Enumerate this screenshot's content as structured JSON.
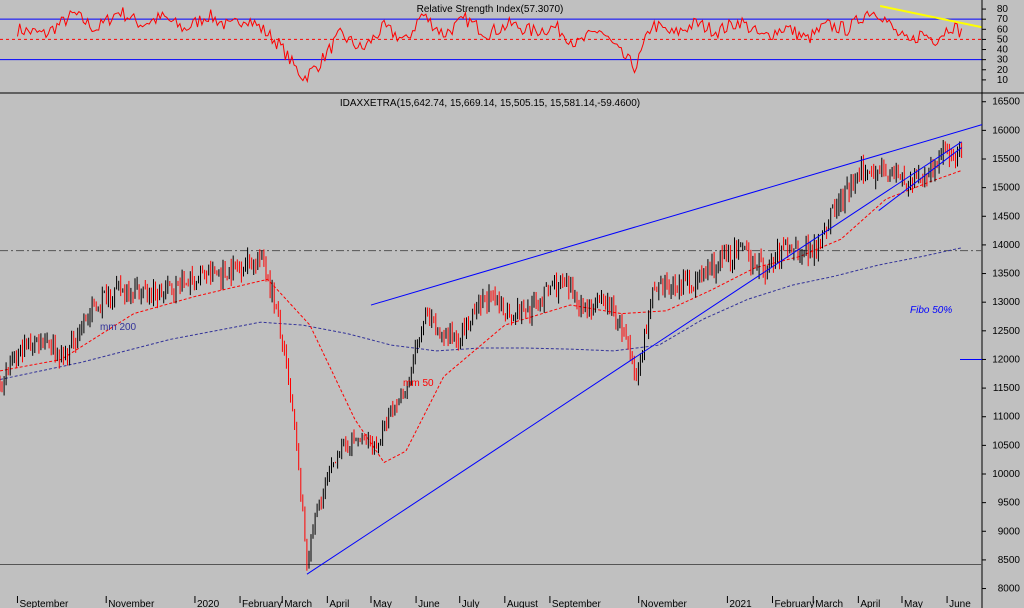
{
  "colors": {
    "background": "#c0c0c0",
    "price_up": "#000000",
    "price_down": "#ff0000",
    "trendline": "#0000ff",
    "ma50": "#ff0000",
    "ma200": "#333399",
    "rsi_line": "#ff0000",
    "rsi_band": "#0000ff",
    "rsi_trend": "#ffff00",
    "fibo_label": "#0000ff"
  },
  "chart_data": [
    {
      "type": "line",
      "title": "Relative Strength Index(57.3070)",
      "ylim": [
        0,
        85
      ],
      "y_ticks": [
        10,
        20,
        30,
        40,
        50,
        60,
        70,
        80
      ],
      "overbought": 70,
      "oversold": 30,
      "midline": 50,
      "series": [
        {
          "x": [
            "2019-09-01",
            "2019-09-20",
            "2019-10-10",
            "2019-10-25",
            "2019-11-10",
            "2019-11-25",
            "2019-12-10",
            "2019-12-25",
            "2020-01-10",
            "2020-01-25",
            "2020-02-05",
            "2020-02-18",
            "2020-02-28",
            "2020-03-10",
            "2020-03-16",
            "2020-03-26",
            "2020-04-10",
            "2020-04-25",
            "2020-05-10",
            "2020-05-25",
            "2020-06-05",
            "2020-06-20",
            "2020-07-05",
            "2020-07-20",
            "2020-08-05",
            "2020-08-20",
            "2020-09-05",
            "2020-09-20",
            "2020-10-05",
            "2020-10-20",
            "2020-10-30",
            "2020-11-10",
            "2020-11-25",
            "2020-12-10",
            "2020-12-25",
            "2021-01-10",
            "2021-01-25",
            "2021-02-10",
            "2021-02-25",
            "2021-03-10",
            "2021-03-25",
            "2021-04-08",
            "2021-04-16",
            "2021-04-26",
            "2021-05-06",
            "2021-05-14",
            "2021-05-24",
            "2021-06-04",
            "2021-06-11"
          ],
          "values": [
            60,
            55,
            75,
            60,
            78,
            65,
            72,
            60,
            74,
            62,
            72,
            58,
            45,
            22,
            12,
            25,
            55,
            40,
            62,
            48,
            75,
            55,
            70,
            56,
            65,
            58,
            62,
            45,
            60,
            35,
            22,
            65,
            55,
            66,
            58,
            68,
            52,
            62,
            50,
            64,
            60,
            78,
            76,
            58,
            46,
            56,
            50,
            64,
            57
          ]
        }
      ],
      "annotations": [
        {
          "type": "trendline",
          "color": "yellow",
          "from": [
            "2021-04-16",
            83
          ],
          "to": [
            "2021-06-25",
            62
          ]
        }
      ]
    },
    {
      "type": "candlestick",
      "title": "IDAXXETRA(15,642.74, 15,669.14, 15,505.15, 15,581.14,-59.4600)",
      "ylim": [
        7800,
        16600
      ],
      "y_ticks": [
        8000,
        8500,
        9000,
        9500,
        10000,
        10500,
        11000,
        11500,
        12000,
        12500,
        13000,
        13500,
        14000,
        14500,
        15000,
        15500,
        16000,
        16500
      ],
      "x_range": [
        "2019-08-20",
        "2021-06-25"
      ],
      "x_tick_labels": [
        {
          "date": "2019-09-01",
          "label": "September"
        },
        {
          "date": "2019-11-01",
          "label": "November"
        },
        {
          "date": "2020-01-01",
          "label": "2020"
        },
        {
          "date": "2020-02-01",
          "label": "February"
        },
        {
          "date": "2020-03-01",
          "label": "March"
        },
        {
          "date": "2020-04-01",
          "label": "April"
        },
        {
          "date": "2020-05-01",
          "label": "May"
        },
        {
          "date": "2020-06-01",
          "label": "June"
        },
        {
          "date": "2020-07-01",
          "label": "July"
        },
        {
          "date": "2020-08-01",
          "label": "August"
        },
        {
          "date": "2020-09-01",
          "label": "September"
        },
        {
          "date": "2020-11-01",
          "label": "November"
        },
        {
          "date": "2021-01-01",
          "label": "2021"
        },
        {
          "date": "2021-02-01",
          "label": "February"
        },
        {
          "date": "2021-03-01",
          "label": "March"
        },
        {
          "date": "2021-04-01",
          "label": "April"
        },
        {
          "date": "2021-05-01",
          "label": "May"
        },
        {
          "date": "2021-06-01",
          "label": "June"
        }
      ],
      "price_path": {
        "x": [
          "2019-08-20",
          "2019-09-05",
          "2019-09-20",
          "2019-10-03",
          "2019-10-15",
          "2019-11-01",
          "2019-11-20",
          "2019-12-05",
          "2019-12-20",
          "2020-01-05",
          "2020-01-20",
          "2020-02-05",
          "2020-02-17",
          "2020-02-24",
          "2020-03-03",
          "2020-03-10",
          "2020-03-16",
          "2020-03-18",
          "2020-03-24",
          "2020-04-08",
          "2020-04-20",
          "2020-05-05",
          "2020-05-15",
          "2020-05-25",
          "2020-06-08",
          "2020-06-15",
          "2020-07-01",
          "2020-07-20",
          "2020-08-05",
          "2020-08-20",
          "2020-09-03",
          "2020-09-15",
          "2020-09-25",
          "2020-10-10",
          "2020-10-23",
          "2020-10-30",
          "2020-11-10",
          "2020-11-25",
          "2020-12-10",
          "2020-12-28",
          "2021-01-10",
          "2021-01-28",
          "2021-02-10",
          "2021-02-28",
          "2021-03-15",
          "2021-03-31",
          "2021-04-16",
          "2021-04-26",
          "2021-05-07",
          "2021-05-13",
          "2021-05-25",
          "2021-06-04",
          "2021-06-11"
        ],
        "close": [
          11600,
          12200,
          12400,
          12000,
          12600,
          13150,
          13250,
          13100,
          13300,
          13450,
          13500,
          13700,
          13750,
          13100,
          12000,
          10700,
          9000,
          8450,
          9300,
          10400,
          10600,
          10500,
          11050,
          11500,
          12800,
          12450,
          12400,
          13100,
          12800,
          12900,
          13300,
          13200,
          12900,
          13000,
          12400,
          11600,
          13100,
          13300,
          13350,
          13750,
          13900,
          13550,
          14000,
          13900,
          14600,
          15150,
          15400,
          15200,
          15050,
          15150,
          15450,
          15650,
          15581
        ]
      },
      "series": [
        {
          "name": "mm 50",
          "x": [
            "2019-08-20",
            "2019-10-01",
            "2019-11-20",
            "2020-01-01",
            "2020-02-20",
            "2020-03-20",
            "2020-04-20",
            "2020-05-10",
            "2020-05-25",
            "2020-06-20",
            "2020-08-01",
            "2020-09-15",
            "2020-10-20",
            "2020-11-20",
            "2020-12-20",
            "2021-01-20",
            "2021-02-20",
            "2021-03-20",
            "2021-04-20",
            "2021-05-20",
            "2021-06-11"
          ],
          "values": [
            11800,
            12000,
            12800,
            13100,
            13400,
            12600,
            10950,
            10200,
            10400,
            11700,
            12600,
            12950,
            12800,
            12850,
            13200,
            13600,
            13800,
            14100,
            14800,
            15100,
            15300
          ]
        },
        {
          "name": "mm 200",
          "x": [
            "2019-08-20",
            "2019-10-15",
            "2019-12-15",
            "2020-02-15",
            "2020-03-15",
            "2020-04-15",
            "2020-05-15",
            "2020-06-15",
            "2020-07-15",
            "2020-08-15",
            "2020-09-15",
            "2020-10-15",
            "2020-11-15",
            "2020-12-15",
            "2021-01-15",
            "2021-02-15",
            "2021-03-15",
            "2021-04-15",
            "2021-05-15",
            "2021-06-11"
          ],
          "values": [
            11650,
            11950,
            12350,
            12650,
            12600,
            12450,
            12250,
            12150,
            12200,
            12200,
            12180,
            12150,
            12250,
            12700,
            13050,
            13300,
            13450,
            13650,
            13800,
            13950
          ]
        }
      ],
      "annotations": [
        {
          "type": "trendline",
          "from": [
            "2020-03-18",
            8250
          ],
          "to": [
            "2021-06-11",
            15800
          ]
        },
        {
          "type": "trendline",
          "from": [
            "2020-05-01",
            12950
          ],
          "to": [
            "2021-06-25",
            16100
          ]
        },
        {
          "type": "trendline",
          "from": [
            "2021-04-15",
            14600
          ],
          "to": [
            "2021-06-11",
            15700
          ]
        },
        {
          "type": "hline",
          "value": 13900,
          "style": "dash-dot"
        },
        {
          "type": "hline",
          "value": 8420
        },
        {
          "type": "hline",
          "value": 12000,
          "label": "Fibo 50%"
        }
      ],
      "labels": {
        "ma50": "mm 50",
        "ma200": "mm 200",
        "fibo": "Fibo 50%"
      }
    }
  ]
}
